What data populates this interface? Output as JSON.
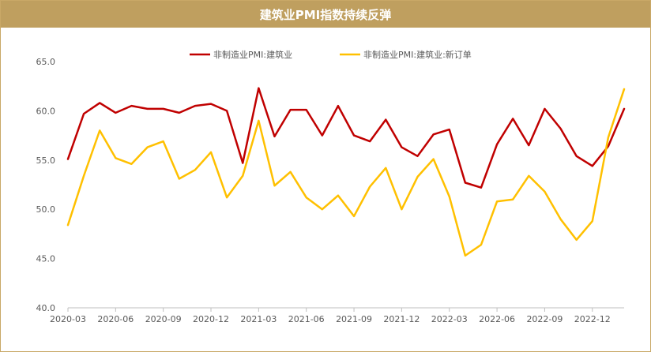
{
  "chart_data": {
    "type": "line",
    "title": "建筑业PMI指数持续反弹",
    "xlabel": "",
    "ylabel": "",
    "ylim": [
      40,
      65
    ],
    "yticks": [
      "40.0",
      "45.0",
      "50.0",
      "55.0",
      "60.0",
      "65.0"
    ],
    "xtick_labels": [
      "2020-03",
      "2020-06",
      "2020-09",
      "2020-12",
      "2021-03",
      "2021-06",
      "2021-09",
      "2021-12",
      "2022-03",
      "2022-06",
      "2022-09",
      "2022-12"
    ],
    "x": [
      "2020-03",
      "2020-04",
      "2020-05",
      "2020-06",
      "2020-07",
      "2020-08",
      "2020-09",
      "2020-10",
      "2020-11",
      "2020-12",
      "2021-01",
      "2021-02",
      "2021-03",
      "2021-04",
      "2021-05",
      "2021-06",
      "2021-07",
      "2021-08",
      "2021-09",
      "2021-10",
      "2021-11",
      "2021-12",
      "2022-01",
      "2022-02",
      "2022-03",
      "2022-04",
      "2022-05",
      "2022-06",
      "2022-07",
      "2022-08",
      "2022-09",
      "2022-10",
      "2022-11",
      "2022-12",
      "2023-01",
      "2023-02"
    ],
    "legend_position": "top",
    "grid": false,
    "series": [
      {
        "name": "非制造业PMI:建筑业",
        "color": "#c00000",
        "values": [
          55.1,
          59.7,
          60.8,
          59.8,
          60.5,
          60.2,
          60.2,
          59.8,
          60.5,
          60.7,
          60.0,
          54.7,
          62.3,
          57.4,
          60.1,
          60.1,
          57.5,
          60.5,
          57.5,
          56.9,
          59.1,
          56.3,
          55.4,
          57.6,
          58.1,
          52.7,
          52.2,
          56.6,
          59.2,
          56.5,
          60.2,
          58.2,
          55.4,
          54.4,
          56.4,
          60.2
        ]
      },
      {
        "name": "非制造业PMI:建筑业:新订单",
        "color": "#ffc000",
        "values": [
          48.4,
          53.4,
          58.0,
          55.2,
          54.6,
          56.3,
          56.9,
          53.1,
          54.0,
          55.8,
          51.2,
          53.4,
          59.0,
          52.4,
          53.8,
          51.2,
          50.0,
          51.4,
          49.3,
          52.3,
          54.2,
          50.0,
          53.3,
          55.1,
          51.3,
          45.3,
          46.4,
          50.8,
          51.0,
          53.4,
          51.8,
          49.0,
          46.9,
          48.8,
          57.3,
          62.2
        ]
      }
    ]
  }
}
